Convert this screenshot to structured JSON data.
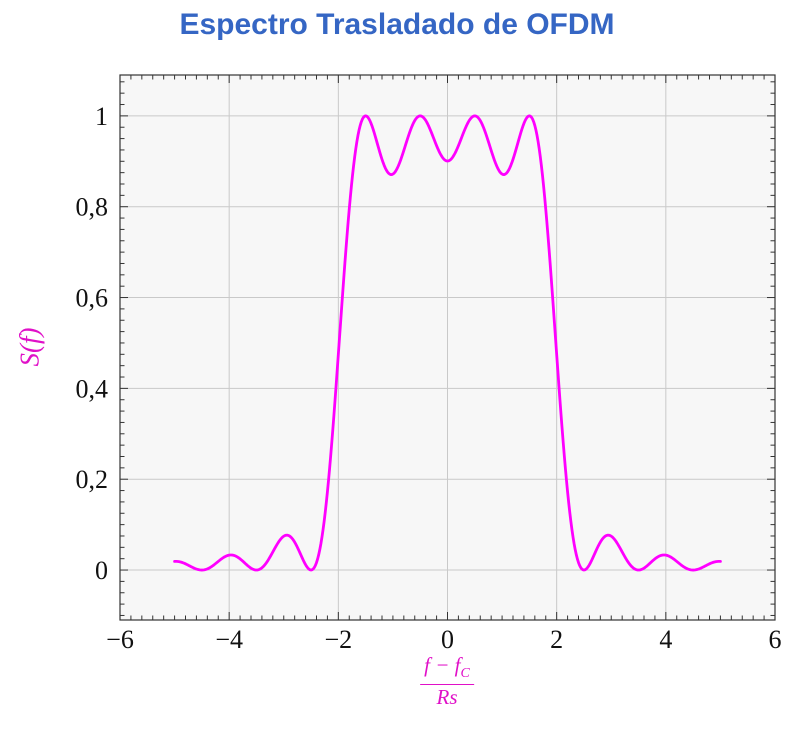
{
  "chart_data": {
    "type": "line",
    "title": "Espectro Trasladado de OFDM",
    "ylabel": "S(f)",
    "xlabel": "(f − f_C) / Rs",
    "xlabel_parts": {
      "numerator_main": "f − f",
      "numerator_sub": "C",
      "denominator": "Rs"
    },
    "xlim": [
      -6,
      6
    ],
    "ylim": [
      -0.11,
      1.09
    ],
    "x_ticks": [
      -6,
      -4,
      -2,
      0,
      2,
      4,
      6
    ],
    "x_tick_labels": [
      "−6",
      "−4",
      "−2",
      "0",
      "2",
      "4",
      "6"
    ],
    "y_ticks": [
      0,
      0.2,
      0.4,
      0.6,
      0.8,
      1
    ],
    "y_tick_labels": [
      "0",
      "0,2",
      "0,4",
      "0,6",
      "0,8",
      "1"
    ],
    "x_minor_step": 0.2,
    "y_minor_step": 0.025,
    "grid": true,
    "legend": "none",
    "series": [
      {
        "name": "S(f)",
        "model": "normalized OFDM spectrum: sum of sinc^2(f - fk) over 4 subcarriers",
        "subcarriers": [
          -1.5,
          -0.5,
          0.5,
          1.5
        ],
        "x_range": [
          -5,
          5
        ],
        "peak_value": 1.0,
        "samples": {
          "x": [
            -5,
            -4.75,
            -4.5,
            -4.25,
            -4,
            -3.75,
            -3.5,
            -3.25,
            -3,
            -2.75,
            -2.5,
            -2.25,
            -2,
            -1.75,
            -1.5,
            -1.25,
            -1,
            -0.75,
            -0.5,
            -0.25,
            0,
            0.25,
            0.5,
            0.75,
            1,
            1.25,
            1.5,
            1.75,
            2,
            2.25,
            2.5,
            2.75,
            3,
            3.25,
            3.5,
            3.75,
            4,
            4.25,
            4.5,
            4.75,
            5
          ],
          "y": [
            0.019,
            0.0107,
            0,
            0.0141,
            0.0328,
            0.0194,
            0,
            0.0291,
            0.0745,
            0.05,
            0,
            0.1169,
            0.4748,
            0.8577,
            1,
            0.9238,
            0.8718,
            0.943,
            1,
            0.9496,
            0.9006,
            0.9496,
            1,
            0.943,
            0.8718,
            0.9238,
            1,
            0.8577,
            0.4748,
            0.1169,
            0,
            0.05,
            0.0745,
            0.0291,
            0,
            0.0194,
            0.0328,
            0.0141,
            0,
            0.0107,
            0.019
          ]
        }
      }
    ],
    "colors": {
      "curve": "#FF00FF",
      "title": "#3566C4",
      "axis_label": "#E010C8",
      "tick_label": "#111111",
      "grid": "#C9C9C9",
      "frame": "#333333",
      "plot_bg": "#F7F7F7",
      "page_bg": "#FFFFFF"
    }
  }
}
